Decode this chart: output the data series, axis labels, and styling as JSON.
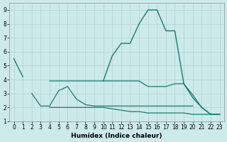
{
  "xlabel": "Humidex (Indice chaleur)",
  "x": [
    0,
    1,
    2,
    3,
    4,
    5,
    6,
    7,
    8,
    9,
    10,
    11,
    12,
    13,
    14,
    15,
    16,
    17,
    18,
    19,
    20,
    21,
    22,
    23
  ],
  "line_peak": [
    5.5,
    4.2,
    null,
    null,
    null,
    null,
    null,
    null,
    null,
    null,
    3.9,
    5.7,
    6.6,
    6.6,
    8.0,
    9.0,
    9.0,
    7.5,
    7.5,
    3.7,
    2.7,
    2.0,
    1.5,
    1.5
  ],
  "line_upper": [
    null,
    null,
    null,
    null,
    3.9,
    3.9,
    3.9,
    3.9,
    3.9,
    3.9,
    3.9,
    3.9,
    3.9,
    3.9,
    3.9,
    3.5,
    3.5,
    3.5,
    3.7,
    3.7,
    2.9,
    2.0,
    1.5,
    1.5
  ],
  "line_mid": [
    null,
    null,
    3.0,
    2.1,
    2.1,
    3.2,
    3.5,
    2.6,
    2.2,
    2.1,
    2.1,
    2.1,
    2.1,
    2.1,
    2.1,
    2.1,
    2.1,
    2.1,
    2.1,
    2.1,
    2.1,
    null,
    null,
    null
  ],
  "line_low": [
    null,
    null,
    null,
    null,
    2.0,
    2.0,
    2.0,
    2.0,
    2.0,
    2.0,
    2.0,
    1.9,
    1.8,
    1.7,
    1.7,
    1.6,
    1.6,
    1.6,
    1.6,
    1.6,
    1.5,
    1.5,
    1.5,
    1.5
  ],
  "line_color": "#1a7a6e",
  "bg_color": "#cdeaea",
  "grid_color": "#b0d0d0",
  "ylim": [
    1,
    9.5
  ],
  "yticks": [
    1,
    2,
    3,
    4,
    5,
    6,
    7,
    8,
    9
  ],
  "xticks": [
    0,
    1,
    2,
    3,
    4,
    5,
    6,
    7,
    8,
    9,
    10,
    11,
    12,
    13,
    14,
    15,
    16,
    17,
    18,
    19,
    20,
    21,
    22,
    23
  ]
}
